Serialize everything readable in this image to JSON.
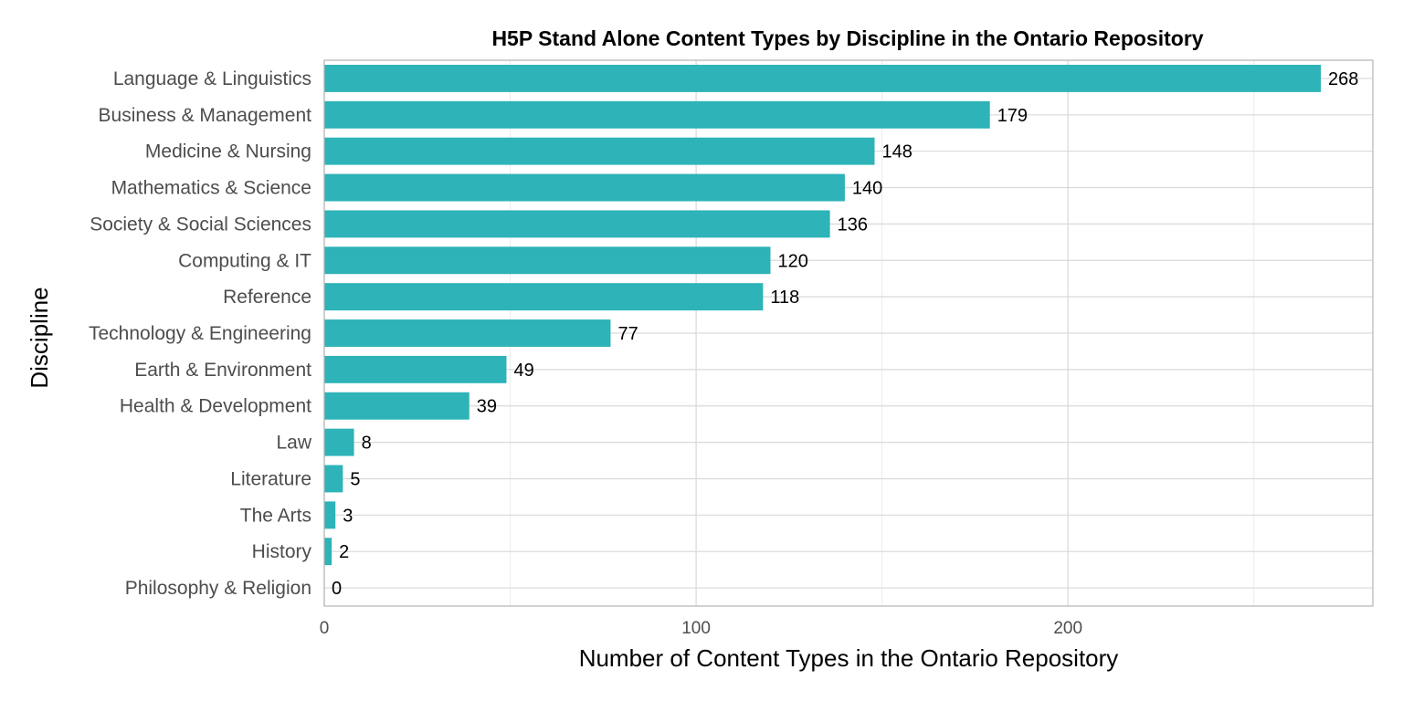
{
  "chart_data": {
    "type": "bar",
    "orientation": "horizontal",
    "title": "H5P Stand Alone Content Types by Discipline in the Ontario Repository",
    "xlabel": "Number of Content Types in the Ontario Repository",
    "ylabel": "Discipline",
    "xlim": [
      0,
      282
    ],
    "xticks": [
      0,
      100,
      200
    ],
    "grid": true,
    "bar_color": "#2db3b8",
    "categories": [
      "Language & Linguistics",
      "Business & Management",
      "Medicine & Nursing",
      "Mathematics & Science",
      "Society & Social Sciences",
      "Computing & IT",
      "Reference",
      "Technology & Engineering",
      "Earth & Environment",
      "Health & Development",
      "Law",
      "Literature",
      "The Arts",
      "History",
      "Philosophy & Religion"
    ],
    "values": [
      268,
      179,
      148,
      140,
      136,
      120,
      118,
      77,
      49,
      39,
      8,
      5,
      3,
      2,
      0
    ]
  }
}
